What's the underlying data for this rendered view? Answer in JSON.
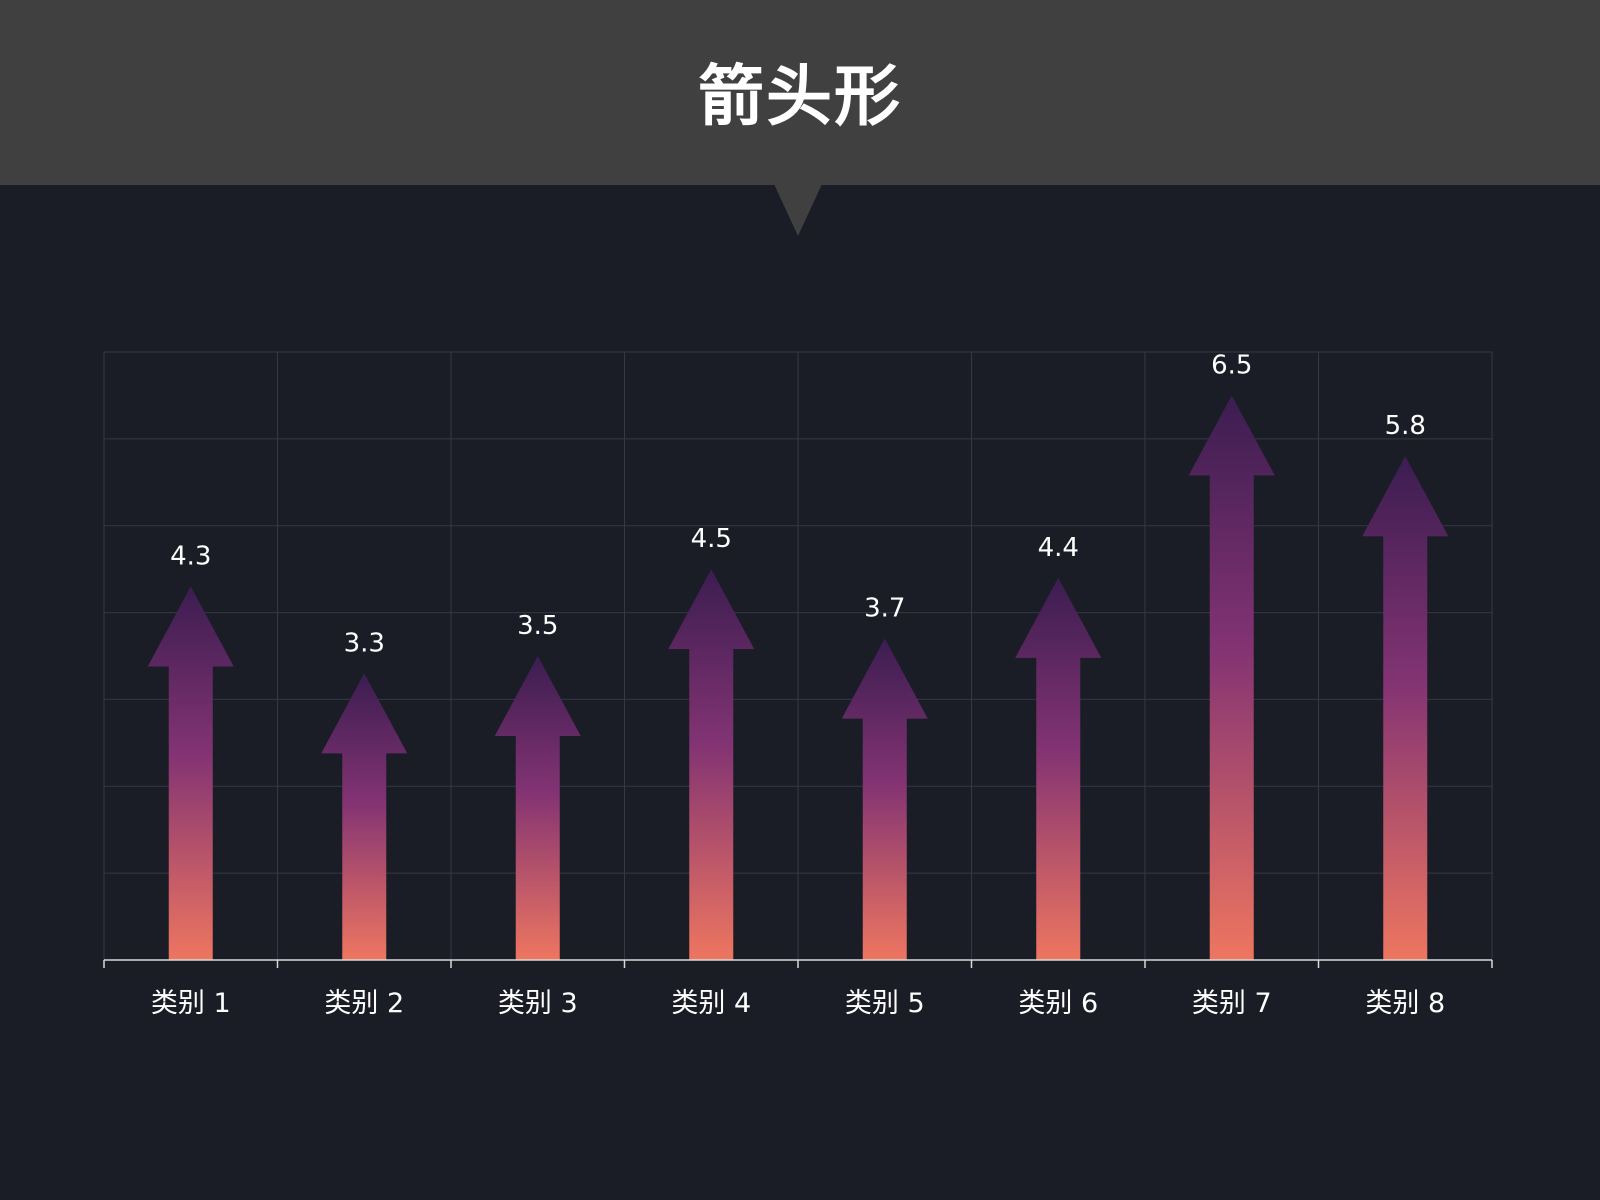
{
  "header": {
    "title": "箭头形"
  },
  "chart_data": {
    "type": "bar",
    "style": "arrow",
    "categories": [
      "类别 1",
      "类别 2",
      "类别 3",
      "类别 4",
      "类别 5",
      "类别 6",
      "类别 7",
      "类别 8"
    ],
    "values": [
      4.3,
      3.3,
      3.5,
      4.5,
      3.7,
      4.4,
      6.5,
      5.8
    ],
    "ylim": [
      0,
      7
    ],
    "grid": true,
    "title": "",
    "xlabel": "",
    "ylabel": "",
    "colors": {
      "gradient_top": "#3b1d51",
      "gradient_mid": "#833373",
      "gradient_bottom": "#ee7660",
      "grid": "#353845",
      "axis": "#d9d9d9"
    }
  }
}
